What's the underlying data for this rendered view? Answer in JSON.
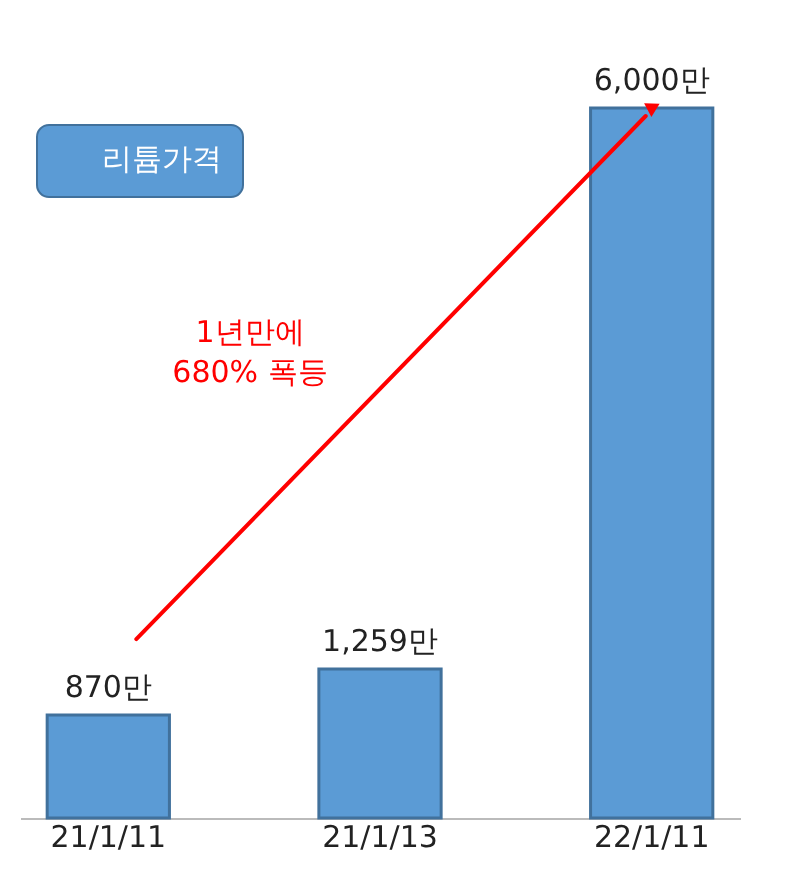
{
  "chart_data": {
    "type": "bar",
    "categories": [
      "21/1/11",
      "21/1/13",
      "22/1/11"
    ],
    "series": [
      {
        "name": "리튬가격",
        "color": "#5b9bd5",
        "values": [
          870,
          1259,
          6000
        ],
        "value_labels": [
          "870만",
          "1,259만",
          "6,000만"
        ]
      }
    ],
    "legend": "top left",
    "grid": false,
    "annotations": [
      "1년만에\n680% 폭등"
    ]
  }
}
